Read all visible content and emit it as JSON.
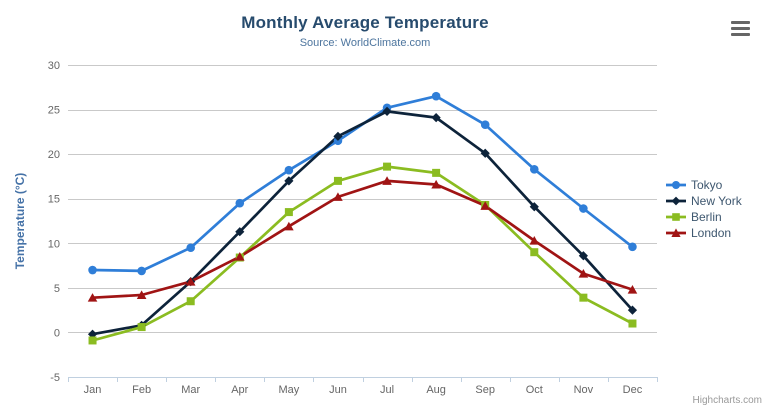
{
  "chart": {
    "title": "Monthly Average Temperature",
    "subtitle": "Source: WorldClimate.com",
    "credits": "Highcharts.com",
    "icons": {
      "context_menu": "hamburger-icon"
    }
  },
  "chart_data": {
    "type": "line",
    "title": "Monthly Average Temperature",
    "subtitle": "Source: WorldClimate.com",
    "categories": [
      "Jan",
      "Feb",
      "Mar",
      "Apr",
      "May",
      "Jun",
      "Jul",
      "Aug",
      "Sep",
      "Oct",
      "Nov",
      "Dec"
    ],
    "xlabel": "",
    "ylabel": "Temperature (°C)",
    "ylim": [
      -5,
      30
    ],
    "ytick_interval": 5,
    "grid": true,
    "legend_position": "right",
    "series": [
      {
        "name": "Tokyo",
        "color": "#2f7ed8",
        "marker": "circle",
        "values": [
          7.0,
          6.9,
          9.5,
          14.5,
          18.2,
          21.5,
          25.2,
          26.5,
          23.3,
          18.3,
          13.9,
          9.6
        ]
      },
      {
        "name": "New York",
        "color": "#0d233a",
        "marker": "diamond",
        "values": [
          -0.2,
          0.8,
          5.7,
          11.3,
          17.0,
          22.0,
          24.8,
          24.1,
          20.1,
          14.1,
          8.6,
          2.5
        ]
      },
      {
        "name": "Berlin",
        "color": "#8bbc21",
        "marker": "square",
        "values": [
          -0.9,
          0.6,
          3.5,
          8.4,
          13.5,
          17.0,
          18.6,
          17.9,
          14.3,
          9.0,
          3.9,
          1.0
        ]
      },
      {
        "name": "London",
        "color": "#a01414",
        "marker": "triangle",
        "values": [
          3.9,
          4.2,
          5.7,
          8.5,
          11.9,
          15.2,
          17.0,
          16.6,
          14.2,
          10.3,
          6.6,
          4.8
        ]
      }
    ],
    "styles": {
      "gridline_color": "#c9c9c9",
      "axis_line_color": "#c0d0e0",
      "axis_label_color": "#666666",
      "y_title_color": "#4572a7",
      "legend_text_color": "#3E576F",
      "line_width": 2.7
    }
  }
}
